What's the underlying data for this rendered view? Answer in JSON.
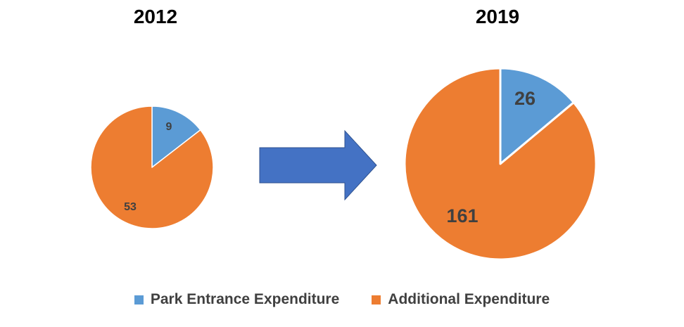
{
  "chart_data": {
    "type": "pie",
    "legend_position": "bottom",
    "legend": [
      {
        "label": "Park Entrance Expenditure",
        "color": "#5B9BD5"
      },
      {
        "label": "Additional Expenditure",
        "color": "#ED7D31"
      }
    ],
    "charts": [
      {
        "title": "2012",
        "slices": [
          {
            "label": "Park Entrance Expenditure",
            "value": 9,
            "value_label": "9",
            "color": "#5B9BD5"
          },
          {
            "label": "Additional Expenditure",
            "value": 53,
            "value_label": "53",
            "color": "#ED7D31"
          }
        ]
      },
      {
        "title": "2019",
        "slices": [
          {
            "label": "Park Entrance Expenditure",
            "value": 26,
            "value_label": "26",
            "color": "#5B9BD5"
          },
          {
            "label": "Additional Expenditure",
            "value": 161,
            "value_label": "161",
            "color": "#ED7D31"
          }
        ]
      }
    ],
    "arrow_color": "#4472C4"
  }
}
